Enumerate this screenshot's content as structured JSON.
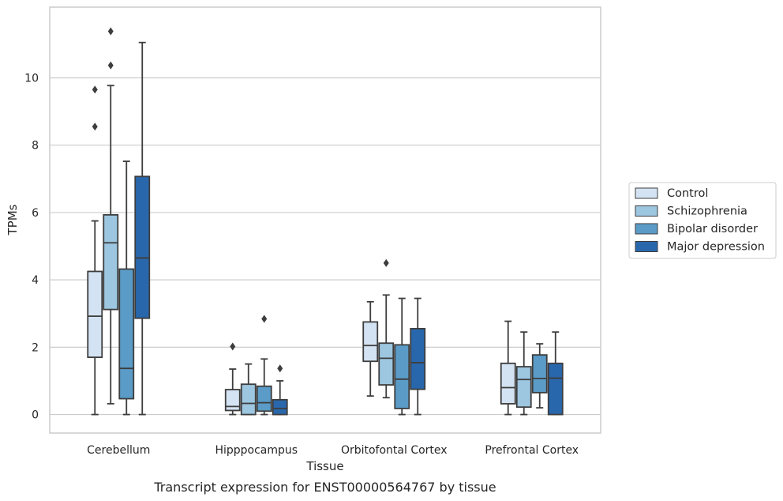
{
  "chart_data": {
    "type": "box",
    "caption": "Transcript expression for ENST00000564767 by tissue",
    "xlabel": "Tissue",
    "ylabel": "TPMs",
    "ylim": [
      -0.55,
      12.1
    ],
    "yticks": [
      0,
      2,
      4,
      6,
      8,
      10
    ],
    "ytick_labels": [
      "0",
      "2",
      "4",
      "6",
      "8",
      "10"
    ],
    "grid": "horizontal",
    "legend_placement": "right, outside",
    "categories": [
      "Cerebellum",
      "Hipppocampus",
      "Orbitofontal Cortex",
      "Prefrontal Cortex"
    ],
    "series": [
      {
        "name": "Control",
        "color": "#d4e3f3",
        "boxes": [
          {
            "whisker_low": 0.0,
            "q1": 1.7,
            "median": 2.92,
            "q3": 4.25,
            "whisker_high": 5.75,
            "outliers": [
              8.55,
              9.65
            ]
          },
          {
            "whisker_low": 0.0,
            "q1": 0.12,
            "median": 0.24,
            "q3": 0.74,
            "whisker_high": 1.35,
            "outliers": [
              2.02
            ]
          },
          {
            "whisker_low": 0.55,
            "q1": 1.58,
            "median": 2.05,
            "q3": 2.75,
            "whisker_high": 3.35,
            "outliers": []
          },
          {
            "whisker_low": 0.0,
            "q1": 0.32,
            "median": 0.8,
            "q3": 1.52,
            "whisker_high": 2.77,
            "outliers": []
          }
        ]
      },
      {
        "name": "Schizophrenia",
        "color": "#9dc6e0",
        "boxes": [
          {
            "whisker_low": 0.32,
            "q1": 3.12,
            "median": 5.1,
            "q3": 5.93,
            "whisker_high": 9.77,
            "outliers": [
              10.37,
              11.38
            ]
          },
          {
            "whisker_low": 0.0,
            "q1": 0.0,
            "median": 0.33,
            "q3": 0.9,
            "whisker_high": 1.5,
            "outliers": []
          },
          {
            "whisker_low": 0.5,
            "q1": 0.88,
            "median": 1.67,
            "q3": 2.12,
            "whisker_high": 3.55,
            "outliers": [
              4.5
            ]
          },
          {
            "whisker_low": 0.0,
            "q1": 0.22,
            "median": 1.04,
            "q3": 1.42,
            "whisker_high": 2.45,
            "outliers": []
          }
        ]
      },
      {
        "name": "Bipolar disorder",
        "color": "#5a9bc7",
        "boxes": [
          {
            "whisker_low": 0.0,
            "q1": 0.47,
            "median": 1.37,
            "q3": 4.32,
            "whisker_high": 7.52,
            "outliers": []
          },
          {
            "whisker_low": 0.0,
            "q1": 0.1,
            "median": 0.35,
            "q3": 0.84,
            "whisker_high": 1.65,
            "outliers": [
              2.84
            ]
          },
          {
            "whisker_low": 0.0,
            "q1": 0.18,
            "median": 1.05,
            "q3": 2.07,
            "whisker_high": 3.45,
            "outliers": []
          },
          {
            "whisker_low": 0.2,
            "q1": 0.65,
            "median": 1.07,
            "q3": 1.77,
            "whisker_high": 2.1,
            "outliers": []
          }
        ]
      },
      {
        "name": "Major depression",
        "color": "#2967ac",
        "boxes": [
          {
            "whisker_low": 0.0,
            "q1": 2.86,
            "median": 4.65,
            "q3": 7.07,
            "whisker_high": 11.05,
            "outliers": []
          },
          {
            "whisker_low": 0.0,
            "q1": 0.0,
            "median": 0.18,
            "q3": 0.44,
            "whisker_high": 1.0,
            "outliers": [
              1.37
            ]
          },
          {
            "whisker_low": 0.0,
            "q1": 0.75,
            "median": 1.54,
            "q3": 2.55,
            "whisker_high": 3.45,
            "outliers": []
          },
          {
            "whisker_low": 0.0,
            "q1": 0.0,
            "median": 1.08,
            "q3": 1.52,
            "whisker_high": 2.45,
            "outliers": []
          }
        ]
      }
    ]
  }
}
